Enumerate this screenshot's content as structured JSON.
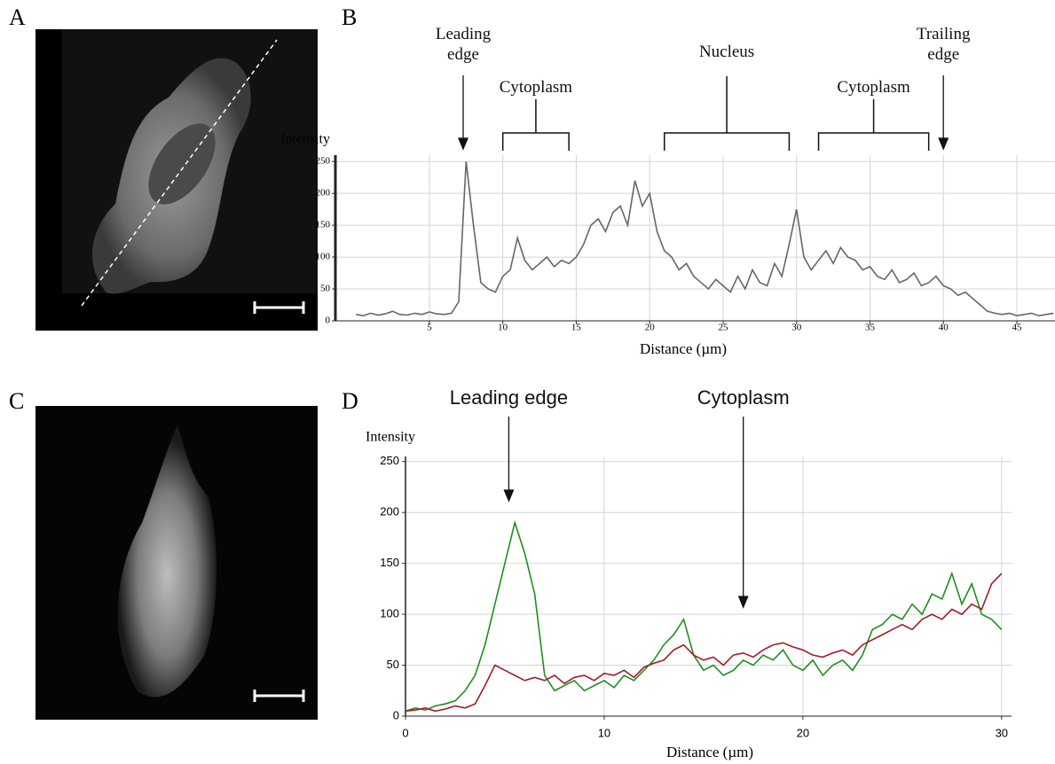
{
  "panel_labels": [
    "A",
    "B",
    "C",
    "D"
  ],
  "chart_data": [
    {
      "type": "line",
      "ylabel": "Intensity",
      "xlabel": "Distance (µm)",
      "xlim": [
        -1.4,
        47.6
      ],
      "ylim": [
        0,
        260
      ],
      "xticks": [
        5,
        10,
        15,
        20,
        25,
        30,
        35,
        40,
        45
      ],
      "yticks": [
        0,
        50,
        100,
        150,
        200,
        250
      ],
      "grid": true,
      "x": [
        0,
        0.5,
        1,
        1.5,
        2,
        2.5,
        3,
        3.5,
        4,
        4.5,
        5,
        5.5,
        6,
        6.5,
        7,
        7.5,
        8,
        8.5,
        9,
        9.5,
        10,
        10.5,
        11,
        11.5,
        12,
        12.5,
        13,
        13.5,
        14,
        14.5,
        15,
        15.5,
        16,
        16.5,
        17,
        17.5,
        18,
        18.5,
        19,
        19.5,
        20,
        20.5,
        21,
        21.5,
        22,
        22.5,
        23,
        23.5,
        24,
        24.5,
        25,
        25.5,
        26,
        26.5,
        27,
        27.5,
        28,
        28.5,
        29,
        29.5,
        30,
        30.5,
        31,
        31.5,
        32,
        32.5,
        33,
        33.5,
        34,
        34.5,
        35,
        35.5,
        36,
        36.5,
        37,
        37.5,
        38,
        38.5,
        39,
        39.5,
        40,
        40.5,
        41,
        41.5,
        42,
        42.5,
        43,
        43.5,
        44,
        44.5,
        45,
        45.5,
        46,
        46.5,
        47,
        47.5
      ],
      "series": [
        {
          "color": "#666666",
          "values": [
            10,
            8,
            12,
            9,
            11,
            15,
            10,
            9,
            12,
            10,
            14,
            11,
            10,
            12,
            30,
            250,
            150,
            60,
            50,
            45,
            70,
            80,
            130,
            95,
            80,
            90,
            100,
            85,
            95,
            90,
            100,
            120,
            150,
            160,
            140,
            170,
            180,
            150,
            220,
            180,
            200,
            140,
            110,
            100,
            80,
            90,
            70,
            60,
            50,
            65,
            55,
            45,
            70,
            50,
            80,
            60,
            55,
            90,
            70,
            120,
            175,
            100,
            80,
            95,
            110,
            90,
            115,
            100,
            95,
            80,
            85,
            70,
            65,
            80,
            60,
            65,
            75,
            55,
            60,
            70,
            55,
            50,
            40,
            45,
            35,
            25,
            15,
            12,
            10,
            12,
            8,
            10,
            12,
            8,
            10,
            12
          ]
        }
      ],
      "annotations": [
        {
          "text": "Leading edge",
          "x": 7.3
        },
        {
          "text": "Cytoplasm",
          "x_range": [
            10,
            14.5
          ]
        },
        {
          "text": "Nucleus",
          "x_range": [
            21,
            29.5
          ]
        },
        {
          "text": "Cytoplasm",
          "x_range": [
            31.5,
            39
          ]
        },
        {
          "text": "Trailing edge",
          "x": 40
        }
      ]
    },
    {
      "type": "line",
      "ylabel": "Intensity",
      "xlabel": "Distance (µm)",
      "xlim": [
        0,
        30.5
      ],
      "ylim": [
        0,
        255
      ],
      "xticks": [
        0,
        10,
        20,
        30
      ],
      "yticks": [
        0,
        50,
        100,
        150,
        200,
        250
      ],
      "grid": true,
      "x": [
        0,
        0.5,
        1,
        1.5,
        2,
        2.5,
        3,
        3.5,
        4,
        4.5,
        5,
        5.5,
        6,
        6.5,
        7,
        7.5,
        8,
        8.5,
        9,
        9.5,
        10,
        10.5,
        11,
        11.5,
        12,
        12.5,
        13,
        13.5,
        14,
        14.5,
        15,
        15.5,
        16,
        16.5,
        17,
        17.5,
        18,
        18.5,
        19,
        19.5,
        20,
        20.5,
        21,
        21.5,
        22,
        22.5,
        23,
        23.5,
        24,
        24.5,
        25,
        25.5,
        26,
        26.5,
        27,
        27.5,
        28,
        28.5,
        29,
        29.5,
        30
      ],
      "series": [
        {
          "color": "#1f8f1f",
          "values": [
            5,
            8,
            6,
            10,
            12,
            15,
            25,
            40,
            70,
            110,
            150,
            190,
            160,
            120,
            40,
            25,
            30,
            35,
            25,
            30,
            35,
            28,
            40,
            35,
            45,
            55,
            70,
            80,
            95,
            60,
            45,
            50,
            40,
            45,
            55,
            50,
            60,
            55,
            65,
            50,
            45,
            55,
            40,
            50,
            55,
            45,
            60,
            85,
            90,
            100,
            95,
            110,
            100,
            120,
            115,
            140,
            110,
            130,
            100,
            95,
            85
          ]
        },
        {
          "color": "#a01c2a",
          "values": [
            5,
            6,
            8,
            5,
            7,
            10,
            8,
            12,
            30,
            50,
            45,
            40,
            35,
            38,
            35,
            40,
            32,
            38,
            40,
            35,
            42,
            40,
            45,
            38,
            48,
            52,
            55,
            65,
            70,
            60,
            55,
            58,
            50,
            60,
            62,
            58,
            65,
            70,
            72,
            68,
            65,
            60,
            58,
            62,
            65,
            60,
            70,
            75,
            80,
            85,
            90,
            85,
            95,
            100,
            95,
            105,
            100,
            110,
            105,
            130,
            140
          ]
        }
      ],
      "annotations": [
        {
          "text": "Leading edge",
          "x": 5.2
        },
        {
          "text": "Cytoplasm",
          "x": 17
        }
      ]
    }
  ]
}
